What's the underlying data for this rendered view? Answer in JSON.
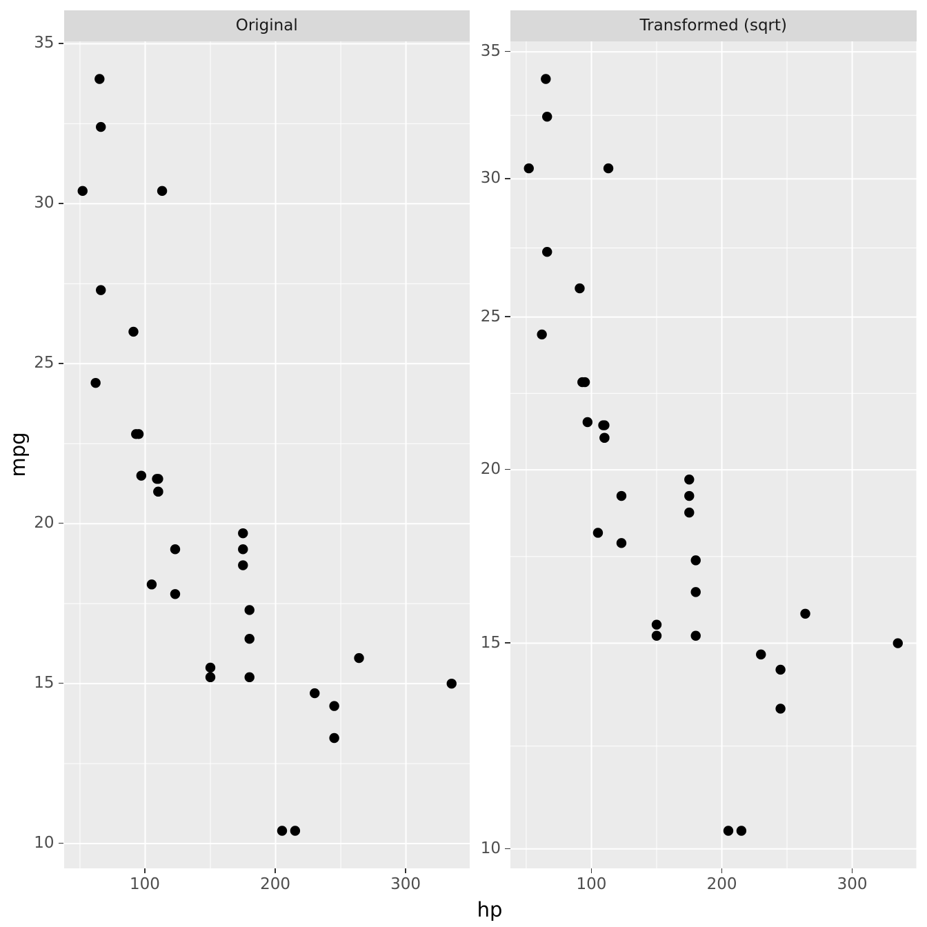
{
  "chart_data": {
    "type": "scatter",
    "xlabel": "hp",
    "ylabel": "mpg",
    "facets": [
      {
        "label": "Original",
        "y_scale": "linear"
      },
      {
        "label": "Transformed (sqrt)",
        "y_scale": "sqrt"
      }
    ],
    "x_major_ticks": [
      100,
      200,
      300
    ],
    "x_minor_ticks": [
      50,
      150,
      250,
      350
    ],
    "y_major_ticks": [
      10,
      15,
      20,
      25,
      30,
      35
    ],
    "x_expand_mult": 0.05,
    "y_expand_mult": 0.05,
    "points": [
      {
        "hp": 110,
        "mpg": 21.0
      },
      {
        "hp": 110,
        "mpg": 21.0
      },
      {
        "hp": 93,
        "mpg": 22.8
      },
      {
        "hp": 110,
        "mpg": 21.4
      },
      {
        "hp": 175,
        "mpg": 18.7
      },
      {
        "hp": 105,
        "mpg": 18.1
      },
      {
        "hp": 245,
        "mpg": 14.3
      },
      {
        "hp": 62,
        "mpg": 24.4
      },
      {
        "hp": 95,
        "mpg": 22.8
      },
      {
        "hp": 123,
        "mpg": 19.2
      },
      {
        "hp": 123,
        "mpg": 17.8
      },
      {
        "hp": 180,
        "mpg": 16.4
      },
      {
        "hp": 180,
        "mpg": 17.3
      },
      {
        "hp": 180,
        "mpg": 15.2
      },
      {
        "hp": 205,
        "mpg": 10.4
      },
      {
        "hp": 215,
        "mpg": 10.4
      },
      {
        "hp": 230,
        "mpg": 14.7
      },
      {
        "hp": 66,
        "mpg": 32.4
      },
      {
        "hp": 52,
        "mpg": 30.4
      },
      {
        "hp": 65,
        "mpg": 33.9
      },
      {
        "hp": 97,
        "mpg": 21.5
      },
      {
        "hp": 150,
        "mpg": 15.5
      },
      {
        "hp": 150,
        "mpg": 15.2
      },
      {
        "hp": 245,
        "mpg": 13.3
      },
      {
        "hp": 175,
        "mpg": 19.2
      },
      {
        "hp": 66,
        "mpg": 27.3
      },
      {
        "hp": 91,
        "mpg": 26.0
      },
      {
        "hp": 113,
        "mpg": 30.4
      },
      {
        "hp": 264,
        "mpg": 15.8
      },
      {
        "hp": 175,
        "mpg": 19.7
      },
      {
        "hp": 335,
        "mpg": 15.0
      },
      {
        "hp": 109,
        "mpg": 21.4
      }
    ],
    "colors": {
      "panel_bg": "#EBEBEB",
      "strip_bg": "#D9D9D9",
      "grid": "#FFFFFF",
      "tick": "#333333",
      "tick_label": "#4D4D4D",
      "axis_title": "#000000",
      "strip_text": "#1A1A1A",
      "point": "#000000"
    }
  }
}
